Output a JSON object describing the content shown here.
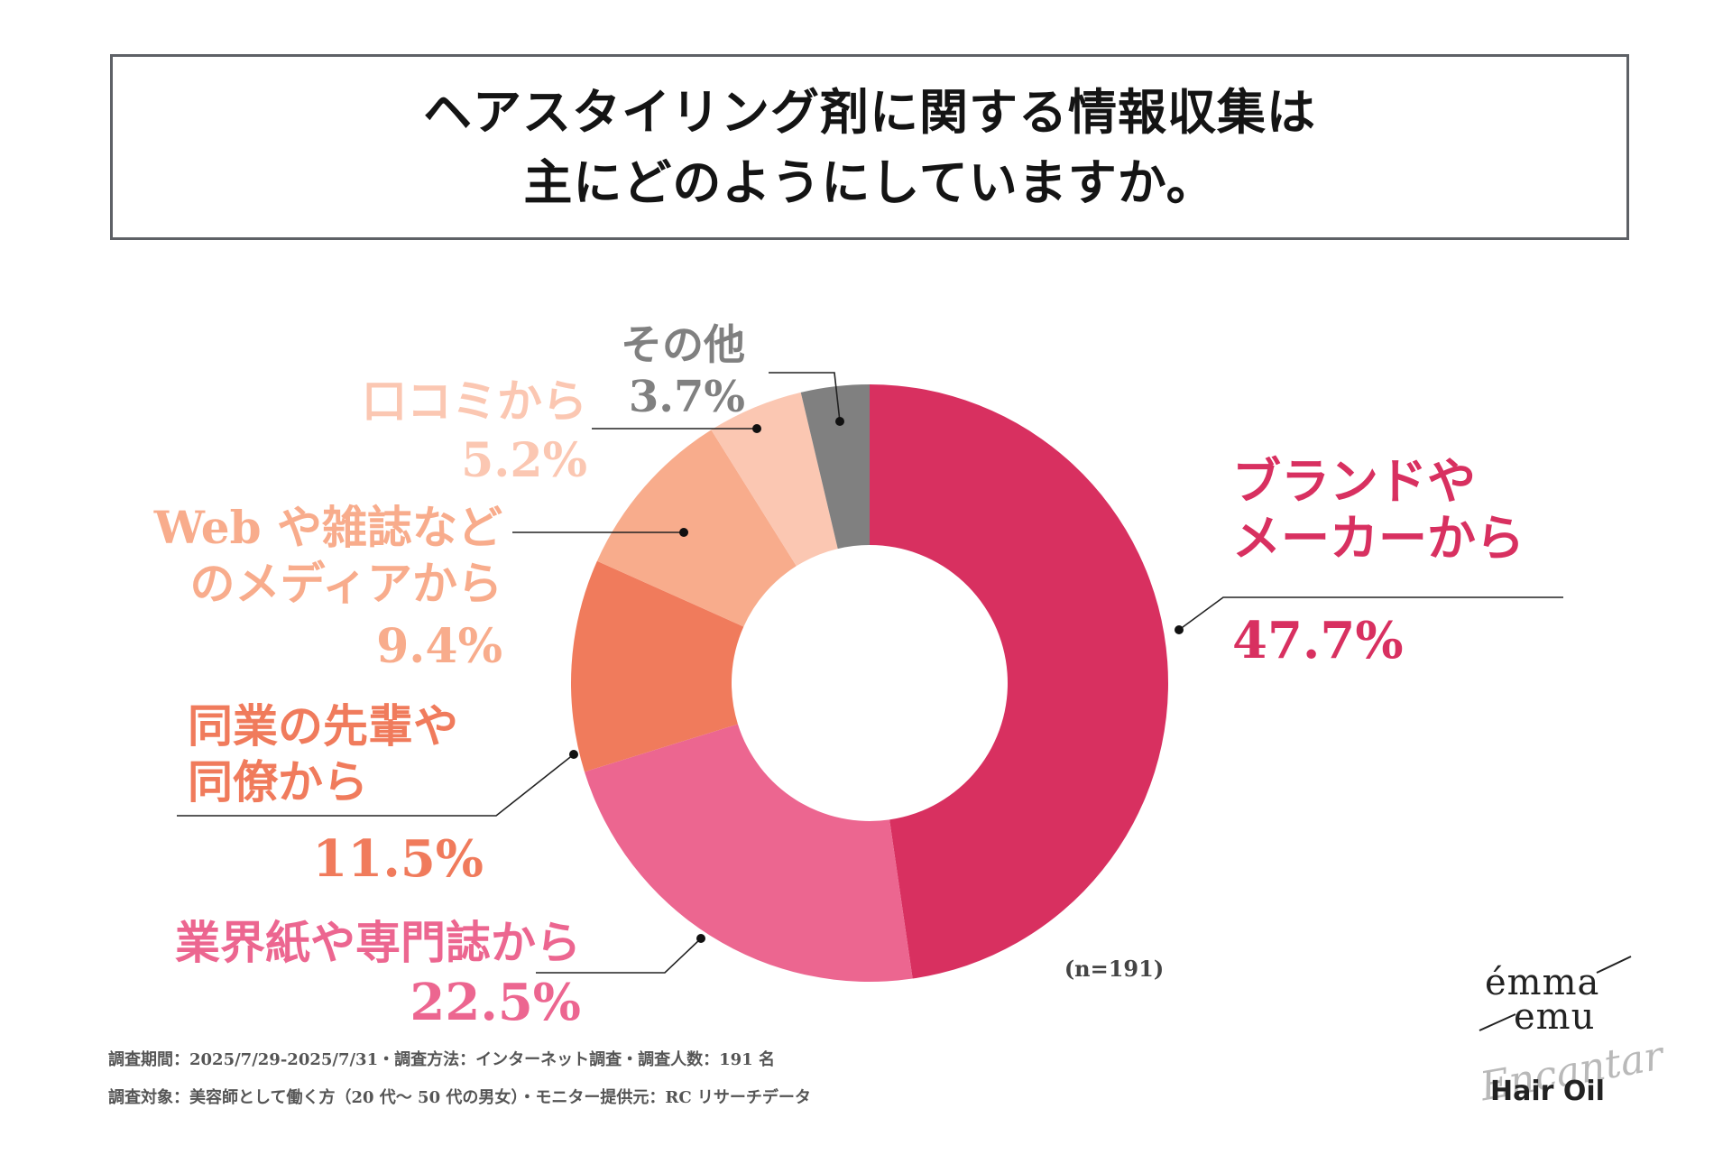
{
  "title": {
    "line1": "ヘアスタイリング剤に関する情報収集は",
    "line2": "主にどのようにしていますか。"
  },
  "chart_data": {
    "type": "pie",
    "donut": true,
    "sample_note": "(n=191)",
    "slices": [
      {
        "label_lines": [
          "ブランドや",
          "メーカーから"
        ],
        "value": 47.7,
        "value_text": "47.7%",
        "color": "#d83060"
      },
      {
        "label_lines": [
          "業界紙や専門誌から"
        ],
        "value": 22.5,
        "value_text": "22.5%",
        "color": "#ec6690"
      },
      {
        "label_lines": [
          "同業の先輩や",
          "同僚から"
        ],
        "value": 11.5,
        "value_text": "11.5%",
        "color": "#f07b5c"
      },
      {
        "label_lines": [
          "Web や雑誌など",
          "のメディアから"
        ],
        "value": 9.4,
        "value_text": "9.4%",
        "color": "#f8ac8c"
      },
      {
        "label_lines": [
          "口コミから"
        ],
        "value": 5.2,
        "value_text": "5.2%",
        "color": "#fbc7b2"
      },
      {
        "label_lines": [
          "その他"
        ],
        "value": 3.7,
        "value_text": "3.7%",
        "color": "#808080"
      }
    ]
  },
  "footer": {
    "line1": "調査期間：2025/7/29-2025/7/31・調査方法：インターネット調査・調査人数：191 名",
    "line2": "調査対象：美容師として働く方（20 代～ 50 代の男女）・モニター提供元：RC リサーチデータ"
  },
  "logo": {
    "emma": "émma",
    "emu": "emu",
    "script": "Encantar",
    "product": "Hair Oil"
  }
}
